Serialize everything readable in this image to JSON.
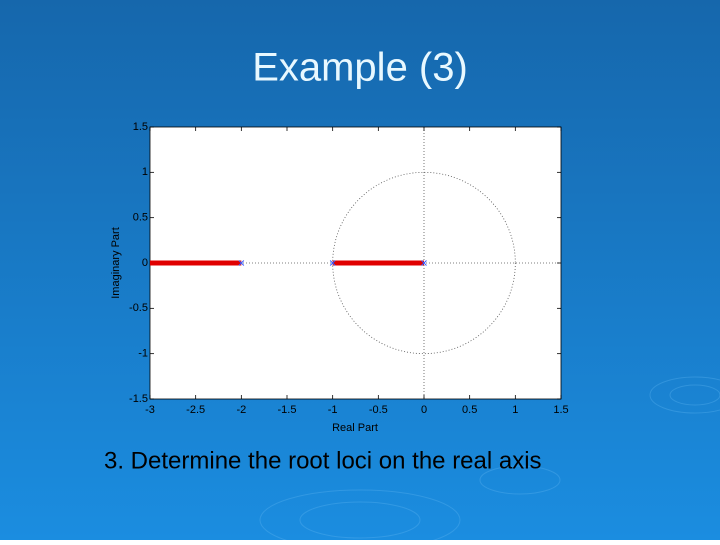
{
  "title": "Example (3)",
  "caption": "3. Determine the root loci on the real axis",
  "chart_data": {
    "type": "rootlocus",
    "xlabel": "Real Part",
    "ylabel": "Imaginary Part",
    "xlim": [
      -3,
      1.5
    ],
    "ylim": [
      -1.5,
      1.5
    ],
    "xticks": [
      -3,
      -2.5,
      -2,
      -1.5,
      -1,
      -0.5,
      0,
      0.5,
      1,
      1.5
    ],
    "yticks": [
      -1.5,
      -1,
      -0.5,
      0,
      0.5,
      1,
      1.5
    ],
    "locus": [
      {
        "x": [
          -3,
          -2
        ],
        "y": [
          0,
          0
        ]
      },
      {
        "x": [
          -1,
          0
        ],
        "y": [
          0,
          0
        ]
      }
    ],
    "locus_color": "#e00000",
    "poles": {
      "x": [
        -2,
        -1,
        0
      ],
      "y": [
        0,
        0,
        0
      ]
    },
    "pole_color": "#3a5cff",
    "circle_radius": 1
  }
}
